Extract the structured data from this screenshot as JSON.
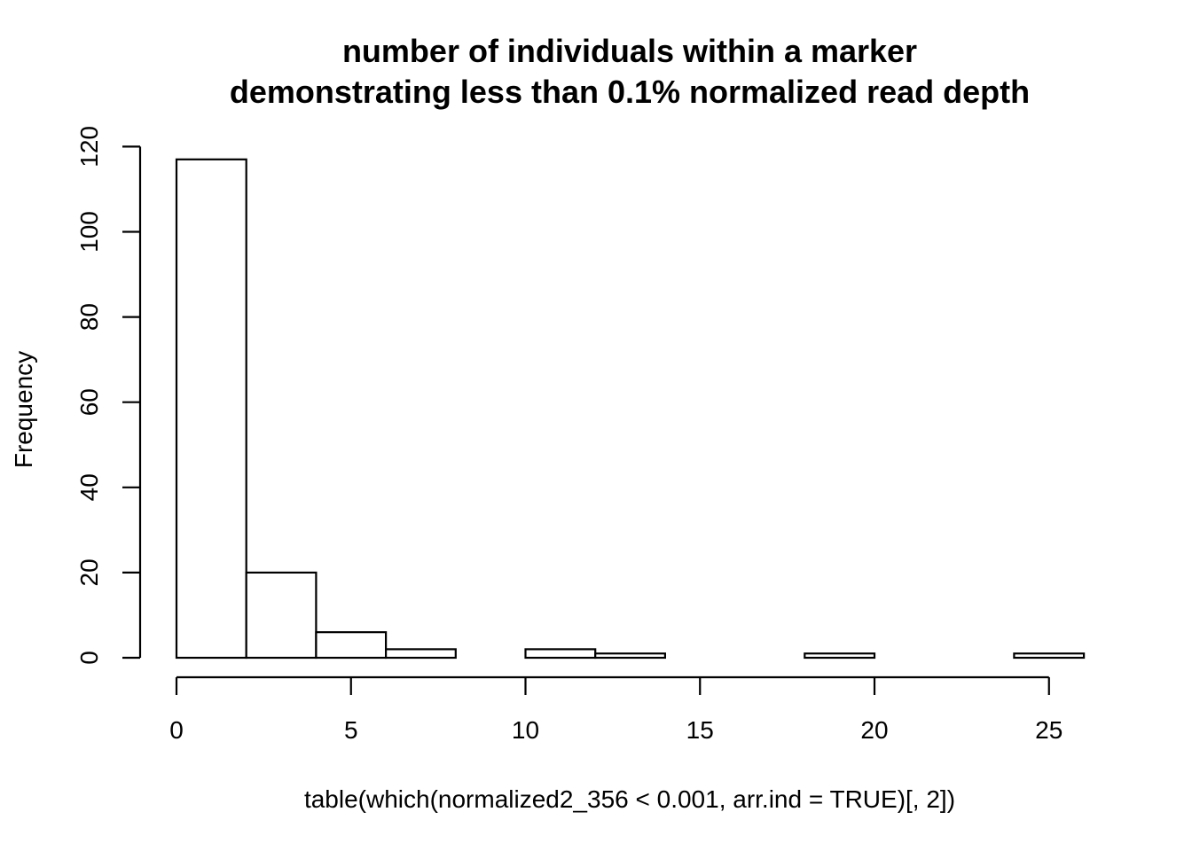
{
  "chart_data": {
    "type": "bar",
    "title": "number of individuals within a marker",
    "subtitle": "demonstrating less than 0.1% normalized read depth",
    "xlabel": "table(which(normalized2_356 < 0.001, arr.ind = TRUE)[, 2])",
    "ylabel": "Frequency",
    "bin_edges": [
      0,
      2,
      4,
      6,
      8,
      10,
      12,
      14,
      16,
      18,
      20,
      22,
      24,
      26
    ],
    "values": [
      117,
      20,
      6,
      2,
      0,
      2,
      1,
      0,
      0,
      1,
      0,
      0,
      1
    ],
    "xlim": [
      0,
      26
    ],
    "ylim": [
      0,
      120
    ],
    "x_ticks": [
      0,
      5,
      10,
      15,
      20,
      25
    ],
    "x_tick_labels": [
      "0",
      "5",
      "10",
      "15",
      "20",
      "25"
    ],
    "y_ticks": [
      0,
      20,
      40,
      60,
      80,
      100,
      120
    ],
    "y_tick_labels": [
      "0",
      "20",
      "40",
      "60",
      "80",
      "100",
      "120"
    ],
    "grid": false,
    "legend": "none",
    "colors": {
      "bar_fill": "#ffffff",
      "bar_stroke": "#000000",
      "text": "#000000"
    }
  }
}
